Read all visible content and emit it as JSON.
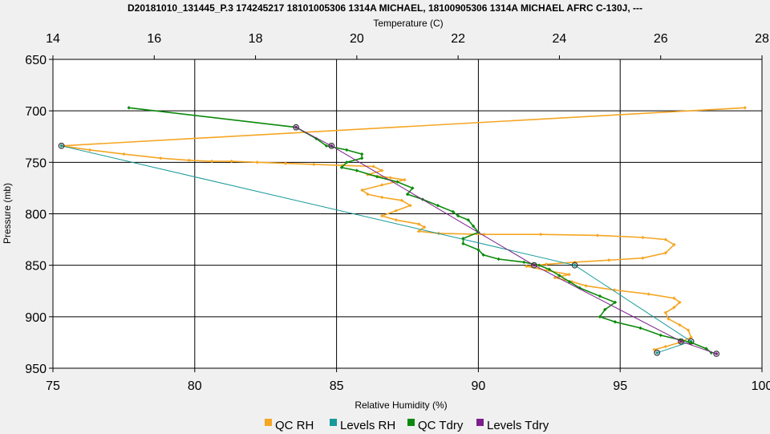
{
  "chart_data": {
    "type": "line",
    "title": "D20181010_131445_P.3 174245217 18101005306 1314A MICHAEL, 18100905306 1314A MICHAEL AFRC C-130J, ---",
    "xlabel": "Relative Humidity (%)",
    "x2label": "Temperature (C)",
    "ylabel": "Pressure (mb)",
    "xlim": [
      75,
      100
    ],
    "x2lim": [
      14,
      28
    ],
    "ylim": [
      650,
      950
    ],
    "y_inverted": true,
    "grid": true,
    "legend_position": "bottom",
    "x_ticks": [
      "75",
      "80",
      "85",
      "90",
      "95",
      "100"
    ],
    "x2_ticks": [
      "14",
      "16",
      "18",
      "20",
      "22",
      "24",
      "26",
      "28"
    ],
    "y_ticks": [
      "650",
      "700",
      "750",
      "800",
      "850",
      "900",
      "950"
    ],
    "series": [
      {
        "name": "QC RH",
        "axis": "rh",
        "color": "#f5a623",
        "marker": "diamond",
        "points": [
          [
            99.4,
            697
          ],
          [
            75.3,
            734
          ],
          [
            76.3,
            738
          ],
          [
            77.5,
            742
          ],
          [
            78.8,
            746
          ],
          [
            79.8,
            748
          ],
          [
            80.6,
            749
          ],
          [
            81.3,
            749
          ],
          [
            82.2,
            750
          ],
          [
            83.2,
            751
          ],
          [
            84.2,
            752
          ],
          [
            85.2,
            753
          ],
          [
            86.3,
            754
          ],
          [
            86.6,
            758
          ],
          [
            86.1,
            762
          ],
          [
            86.9,
            765
          ],
          [
            87.4,
            767
          ],
          [
            86.6,
            772
          ],
          [
            85.9,
            777
          ],
          [
            86.1,
            781
          ],
          [
            86.6,
            784
          ],
          [
            87.3,
            787
          ],
          [
            87.6,
            792
          ],
          [
            87.1,
            797
          ],
          [
            86.6,
            802
          ],
          [
            87.1,
            806
          ],
          [
            87.9,
            810
          ],
          [
            88.1,
            813
          ],
          [
            87.9,
            817
          ],
          [
            88.6,
            819
          ],
          [
            90.2,
            820
          ],
          [
            92.2,
            820
          ],
          [
            94.2,
            821
          ],
          [
            95.8,
            823
          ],
          [
            96.6,
            825
          ],
          [
            96.9,
            830
          ],
          [
            96.6,
            838
          ],
          [
            95.8,
            843
          ],
          [
            94.6,
            845
          ],
          [
            93.4,
            847
          ],
          [
            92.4,
            849
          ],
          [
            91.7,
            851
          ],
          [
            92.4,
            855
          ],
          [
            93.2,
            859
          ],
          [
            92.7,
            862
          ],
          [
            93.3,
            866
          ],
          [
            93.8,
            870
          ],
          [
            94.8,
            874
          ],
          [
            96.0,
            878
          ],
          [
            96.9,
            882
          ],
          [
            97.1,
            886
          ],
          [
            96.9,
            891
          ],
          [
            96.6,
            896
          ],
          [
            96.7,
            902
          ],
          [
            97.1,
            908
          ],
          [
            97.4,
            913
          ],
          [
            97.5,
            920
          ],
          [
            97.1,
            925
          ],
          [
            96.6,
            929
          ],
          [
            96.2,
            932
          ]
        ]
      },
      {
        "name": "Levels RH",
        "axis": "rh",
        "color": "#17999a",
        "marker": "circle",
        "points": [
          [
            75.3,
            734
          ],
          [
            93.4,
            850
          ],
          [
            97.5,
            924
          ],
          [
            96.3,
            935
          ]
        ]
      },
      {
        "name": "QC Tdry",
        "axis": "temp",
        "color": "#0a8a0a",
        "marker": "diamond",
        "points": [
          [
            15.5,
            697
          ],
          [
            18.8,
            716
          ],
          [
            19.2,
            727
          ],
          [
            19.4,
            734
          ],
          [
            19.8,
            738
          ],
          [
            20.1,
            742
          ],
          [
            20.1,
            746
          ],
          [
            19.8,
            750
          ],
          [
            19.7,
            755
          ],
          [
            20.0,
            758
          ],
          [
            20.4,
            764
          ],
          [
            20.8,
            769
          ],
          [
            21.1,
            775
          ],
          [
            21.0,
            781
          ],
          [
            21.3,
            786
          ],
          [
            21.6,
            792
          ],
          [
            21.9,
            798
          ],
          [
            22.0,
            802
          ],
          [
            22.2,
            806
          ],
          [
            22.3,
            812
          ],
          [
            22.4,
            818
          ],
          [
            22.1,
            824
          ],
          [
            22.1,
            829
          ],
          [
            22.4,
            835
          ],
          [
            22.5,
            840
          ],
          [
            22.8,
            844
          ],
          [
            23.3,
            847
          ],
          [
            23.6,
            850
          ],
          [
            23.8,
            854
          ],
          [
            24.0,
            860
          ],
          [
            24.2,
            866
          ],
          [
            24.4,
            872
          ],
          [
            24.8,
            880
          ],
          [
            25.1,
            886
          ],
          [
            24.9,
            893
          ],
          [
            24.8,
            900
          ],
          [
            25.1,
            905
          ],
          [
            25.6,
            911
          ],
          [
            26.0,
            918
          ],
          [
            26.6,
            925
          ],
          [
            26.9,
            931
          ],
          [
            27.0,
            935
          ]
        ]
      },
      {
        "name": "Levels Tdry",
        "axis": "temp",
        "color": "#7b1f8a",
        "marker": "circle",
        "points": [
          [
            18.8,
            716
          ],
          [
            19.5,
            734
          ],
          [
            23.5,
            850
          ],
          [
            26.4,
            924
          ],
          [
            27.1,
            936
          ]
        ]
      }
    ]
  }
}
